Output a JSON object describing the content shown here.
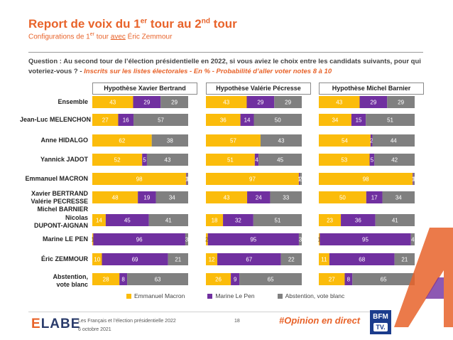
{
  "header": {
    "title_part1": "Report de voix du 1",
    "title_sup1": "er",
    "title_part2": " tour au 2",
    "title_sup2": "nd",
    "title_part3": " tour",
    "subtitle_part1": "Configurations de 1",
    "subtitle_sup": "er",
    "subtitle_part2": " tour ",
    "subtitle_avec": "avec",
    "subtitle_part3": " Éric Zemmour"
  },
  "question": {
    "text": "Question : Au second tour de l’élection présidentielle en 2022, si vous aviez le choix entre les candidats suivants, pour qui voteriez-vous ? - ",
    "note": "Inscrits sur les listes électorales - En % - Probabilité d’aller voter notes 8 à 10"
  },
  "rows": [
    [
      "Ensemble"
    ],
    [
      "Jean-Luc MELENCHON"
    ],
    [
      "Anne HIDALGO"
    ],
    [
      "Yannick JADOT"
    ],
    [
      "Emmanuel MACRON"
    ],
    [
      "Xavier BERTRAND",
      "Valérie PECRESSE",
      "Michel BARNIER"
    ],
    [
      "Nicolas",
      "DUPONT-AIGNAN"
    ],
    [
      "Marine LE PEN"
    ],
    [
      "Éric ZEMMOUR"
    ],
    [
      "Abstention,",
      "vote blanc"
    ]
  ],
  "colors": {
    "macron": "#fbbc0b",
    "lepen": "#7030a0",
    "abstention": "#808080"
  },
  "chart_data": {
    "type": "bar",
    "stacked": true,
    "orientation": "horizontal",
    "categories": [
      "Ensemble",
      "Jean-Luc MELENCHON",
      "Anne HIDALGO",
      "Yannick JADOT",
      "Emmanuel MACRON",
      "Xavier BERTRAND / Valérie PECRESSE / Michel BARNIER",
      "Nicolas DUPONT-AIGNAN",
      "Marine LE PEN",
      "Éric ZEMMOUR",
      "Abstention, vote blanc"
    ],
    "panels": [
      {
        "title": "Hypothèse Xavier Bertrand",
        "series": [
          {
            "name": "Emmanuel Macron",
            "values": [
              43,
              27,
              62,
              52,
              98,
              48,
              14,
              1,
              10,
              28
            ]
          },
          {
            "name": "Marine Le Pen",
            "values": [
              29,
              16,
              0,
              5,
              1,
              19,
              45,
              96,
              69,
              8
            ]
          },
          {
            "name": "Abstention, vote blanc",
            "values": [
              29,
              57,
              38,
              43,
              1,
              34,
              41,
              3,
              21,
              63
            ]
          }
        ]
      },
      {
        "title": "Hypothèse Valérie Pécresse",
        "series": [
          {
            "name": "Emmanuel Macron",
            "values": [
              43,
              36,
              57,
              51,
              97,
              43,
              18,
              2,
              12,
              26
            ]
          },
          {
            "name": "Marine Le Pen",
            "values": [
              29,
              14,
              0,
              4,
              1,
              24,
              32,
              95,
              67,
              9
            ]
          },
          {
            "name": "Abstention, vote blanc",
            "values": [
              29,
              50,
              43,
              45,
              2,
              33,
              51,
              3,
              22,
              65
            ]
          }
        ]
      },
      {
        "title": "Hypothèse Michel Barnier",
        "series": [
          {
            "name": "Emmanuel Macron",
            "values": [
              43,
              34,
              54,
              53,
              98,
              50,
              23,
              1,
              11,
              27
            ]
          },
          {
            "name": "Marine Le Pen",
            "values": [
              29,
              15,
              2,
              5,
              1,
              17,
              36,
              95,
              68,
              8
            ]
          },
          {
            "name": "Abstention, vote blanc",
            "values": [
              29,
              51,
              44,
              42,
              1,
              34,
              41,
              4,
              21,
              65
            ]
          }
        ]
      }
    ],
    "legend": [
      "Emmanuel Macron",
      "Marine Le Pen",
      "Abstention, vote blanc"
    ],
    "legend_position": "bottom",
    "xlim": [
      0,
      100
    ]
  },
  "footer": {
    "brand_e": "E",
    "brand_rest": "LABE",
    "study": "Les Français et l’élection présidentielle 2022",
    "date": "6 octobre 2021",
    "page": "18",
    "hashtag": "#Opinion en direct",
    "bfm_line": "BFM",
    "bfm_tv": "TV."
  }
}
